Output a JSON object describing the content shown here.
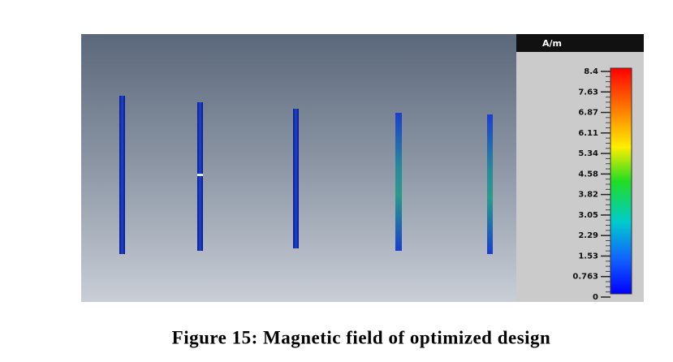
{
  "colorbar": {
    "unit": "A/m",
    "ticks": [
      "8.4",
      "7.63",
      "6.87",
      "6.11",
      "5.34",
      "4.58",
      "3.82",
      "3.05",
      "2.29",
      "1.53",
      "0.763",
      "0"
    ]
  },
  "caption": "Figure 15: Magnetic field of optimized design"
}
